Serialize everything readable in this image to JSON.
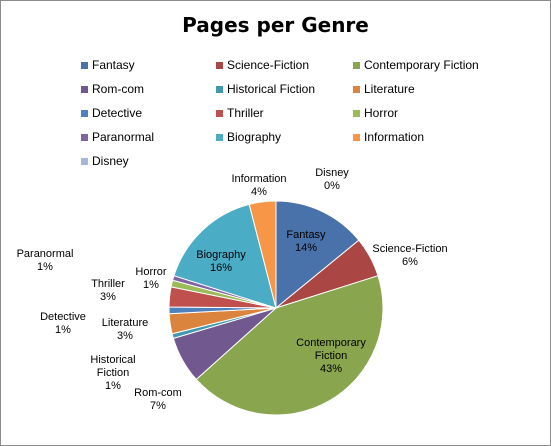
{
  "chart_data": {
    "type": "pie",
    "title": "Pages per Genre",
    "legend_position": "top",
    "slices": [
      {
        "name": "Fantasy",
        "value": 14,
        "pct_label": "14%",
        "color": "#4a72aa"
      },
      {
        "name": "Science-Fiction",
        "value": 6,
        "pct_label": "6%",
        "color": "#aa4644"
      },
      {
        "name": "Contemporary Fiction",
        "value": 43,
        "pct_label": "43%",
        "color": "#89a54e"
      },
      {
        "name": "Rom-com",
        "value": 7,
        "pct_label": "7%",
        "color": "#71588f"
      },
      {
        "name": "Historical Fiction",
        "value": 0.7,
        "pct_label": "1%",
        "color": "#4198af"
      },
      {
        "name": "Literature",
        "value": 3,
        "pct_label": "3%",
        "color": "#db843d"
      },
      {
        "name": "Detective",
        "value": 1,
        "pct_label": "1%",
        "color": "#4f81bd"
      },
      {
        "name": "Thriller",
        "value": 3,
        "pct_label": "3%",
        "color": "#c0504d"
      },
      {
        "name": "Horror",
        "value": 1,
        "pct_label": "1%",
        "color": "#9bbb59"
      },
      {
        "name": "Paranormal",
        "value": 0.7,
        "pct_label": "1%",
        "color": "#8064a2"
      },
      {
        "name": "Biography",
        "value": 16,
        "pct_label": "16%",
        "color": "#4bacc6"
      },
      {
        "name": "Information",
        "value": 4,
        "pct_label": "4%",
        "color": "#f79646"
      },
      {
        "name": "Disney",
        "value": 0,
        "pct_label": "0%",
        "color": "#a5b8d8"
      }
    ]
  }
}
